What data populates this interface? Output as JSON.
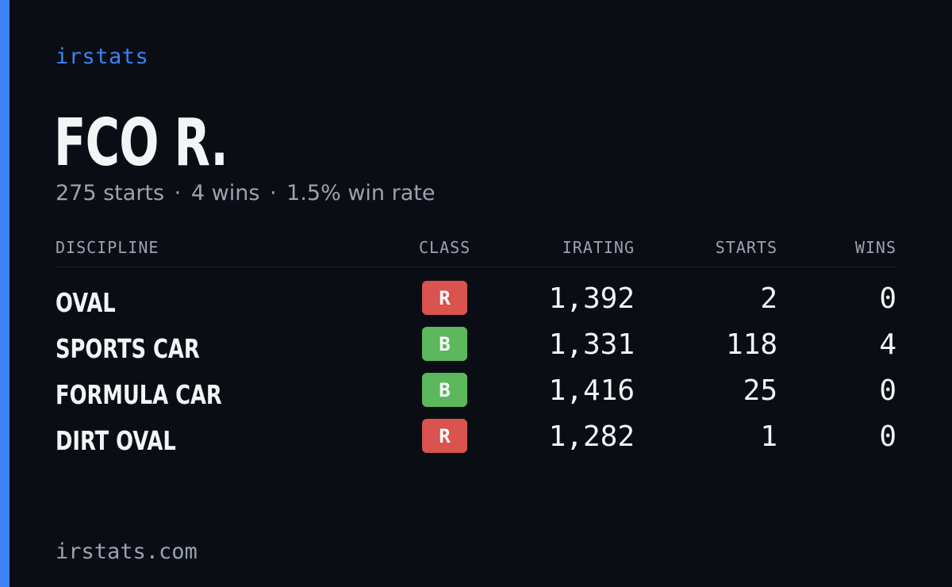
{
  "brand": "irstats",
  "driver_name": "FCO R.",
  "summary": {
    "starts": "275 starts",
    "wins": "4 wins",
    "win_rate": "1.5% win rate",
    "separator": "·"
  },
  "table": {
    "headers": {
      "discipline": "DISCIPLINE",
      "class": "CLASS",
      "irating": "IRATING",
      "starts": "STARTS",
      "wins": "WINS"
    },
    "rows": [
      {
        "discipline": "OVAL",
        "class": "R",
        "irating": "1,392",
        "starts": "2",
        "wins": "0"
      },
      {
        "discipline": "SPORTS CAR",
        "class": "B",
        "irating": "1,331",
        "starts": "118",
        "wins": "4"
      },
      {
        "discipline": "FORMULA CAR",
        "class": "B",
        "irating": "1,416",
        "starts": "25",
        "wins": "0"
      },
      {
        "discipline": "DIRT OVAL",
        "class": "R",
        "irating": "1,282",
        "starts": "1",
        "wins": "0"
      }
    ]
  },
  "footer": "irstats.com",
  "colors": {
    "accent": "#3b82f6",
    "background": "#0a0d14",
    "class_R": "#d9534f",
    "class_B": "#5cb85c"
  }
}
